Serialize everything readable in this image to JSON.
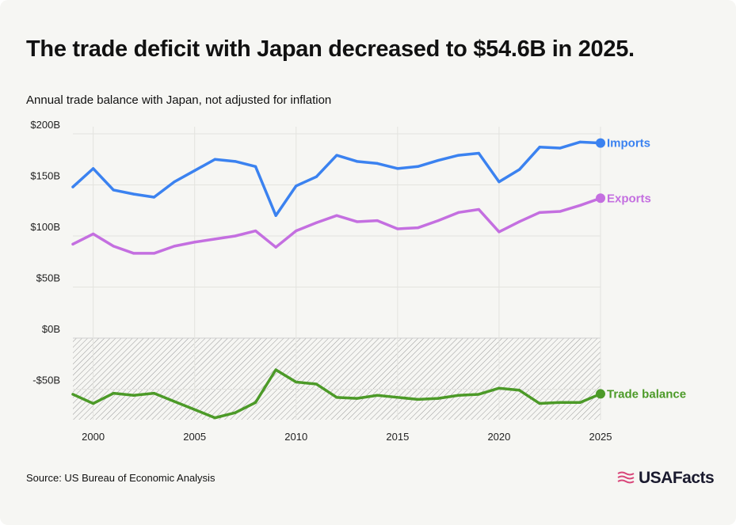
{
  "header": {
    "title": "The trade deficit with Japan decreased to $54.6B in 2025.",
    "subtitle": "Annual trade balance with Japan, not adjusted for inflation"
  },
  "footer": {
    "source": "Source: US Bureau of Economic Analysis",
    "brand": "USAFacts"
  },
  "chart_data": {
    "type": "line",
    "title": "The trade deficit with Japan decreased to $54.6B in 2025.",
    "subtitle": "Annual trade balance with Japan, not adjusted for inflation",
    "xlabel": "",
    "ylabel": "",
    "x": [
      1999,
      2000,
      2001,
      2002,
      2003,
      2004,
      2005,
      2006,
      2007,
      2008,
      2009,
      2010,
      2011,
      2012,
      2013,
      2014,
      2015,
      2016,
      2017,
      2018,
      2019,
      2020,
      2021,
      2022,
      2023,
      2024,
      2025
    ],
    "xticks": [
      {
        "value": 2000,
        "label": "2000"
      },
      {
        "value": 2005,
        "label": "2005"
      },
      {
        "value": 2010,
        "label": "2010"
      },
      {
        "value": 2015,
        "label": "2015"
      },
      {
        "value": 2020,
        "label": "2020"
      },
      {
        "value": 2025,
        "label": "2025"
      }
    ],
    "yticks": [
      {
        "value": 200,
        "label": "$200B"
      },
      {
        "value": 150,
        "label": "$150B"
      },
      {
        "value": 100,
        "label": "$100B"
      },
      {
        "value": 50,
        "label": "$50B"
      },
      {
        "value": 0,
        "label": "$0B"
      },
      {
        "value": -50,
        "label": "-$50B"
      }
    ],
    "xlim": [
      1999,
      2025
    ],
    "ylim": [
      -80,
      205
    ],
    "grid": true,
    "negative_region": "hatched",
    "legend": "end-of-line labels",
    "series": [
      {
        "name": "Imports",
        "color": "#3b82f0",
        "values": [
          148,
          166,
          145,
          141,
          138,
          153,
          164,
          175,
          173,
          168,
          120,
          149,
          158,
          179,
          173,
          171,
          166,
          168,
          174,
          179,
          181,
          153,
          165,
          187,
          186,
          192,
          191
        ]
      },
      {
        "name": "Exports",
        "color": "#c46fe0",
        "values": [
          92,
          102,
          90,
          83,
          83,
          90,
          94,
          97,
          100,
          105,
          89,
          105,
          113,
          120,
          114,
          115,
          107,
          108,
          115,
          123,
          126,
          104,
          114,
          123,
          124,
          130,
          137
        ]
      },
      {
        "name": "Trade balance",
        "color": "#4c9a28",
        "values": [
          -55,
          -64,
          -54,
          -56,
          -54,
          -62,
          -70,
          -78,
          -73,
          -63,
          -31,
          -43,
          -45,
          -58,
          -59,
          -56,
          -58,
          -60,
          -59,
          -56,
          -55,
          -49,
          -51,
          -64,
          -63,
          -63,
          -54.6
        ]
      }
    ]
  }
}
